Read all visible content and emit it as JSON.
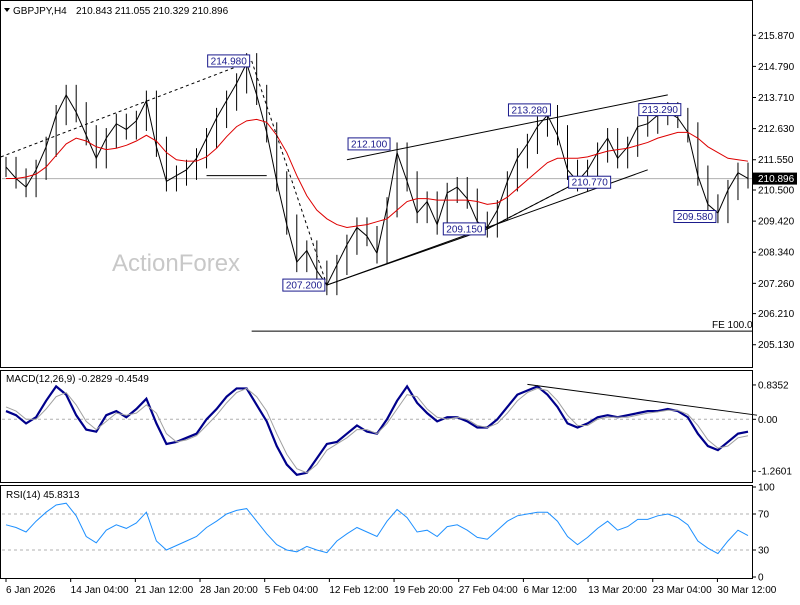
{
  "chart_data": {
    "type": "line",
    "symbol": "GBPJPY,H4",
    "ohlc": "210.843 211.055 210.329 210.896",
    "last_price": "210.896",
    "watermark": "ActionForex",
    "x_labels": [
      "6 Jan 2026",
      "14 Jan 04:00",
      "21 Jan 12:00",
      "28 Jan 20:00",
      "5 Feb 04:00",
      "12 Feb 12:00",
      "19 Feb 20:00",
      "27 Feb 04:00",
      "6 Mar 12:00",
      "13 Mar 20:00",
      "23 Mar 04:00",
      "30 Mar 12:00"
    ],
    "panels": [
      {
        "name": "price",
        "ylim": [
          204.6,
          216.4
        ],
        "y_ticks": [
          "215.870",
          "214.790",
          "213.710",
          "212.630",
          "211.550",
          "210.500",
          "209.420",
          "208.340",
          "207.260",
          "206.210",
          "205.130"
        ],
        "series": [
          {
            "name": "",
            "color": "#000000",
            "y": [
              211.3,
              210.9,
              210.6,
              211.2,
              212.0,
              213.1,
              213.8,
              213.2,
              212.4,
              211.6,
              212.3,
              212.8,
              212.6,
              212.9,
              213.6,
              212.0,
              210.8,
              211.0,
              211.2,
              211.6,
              212.3,
              213.0,
              213.6,
              214.2,
              214.9,
              213.8,
              212.5,
              210.8,
              209.3,
              208.0,
              208.4,
              207.7,
              207.2,
              207.9,
              208.6,
              209.2,
              208.9,
              208.3,
              209.9,
              211.8,
              210.8,
              209.7,
              210.1,
              209.3,
              210.4,
              210.6,
              210.2,
              209.4,
              209.2,
              209.8,
              210.8,
              211.6,
              212.1,
              212.7,
              213.1,
              212.4,
              211.2,
              210.8,
              211.2,
              211.8,
              212.3,
              211.6,
              212.0,
              212.7,
              212.8,
              213.1,
              213.2,
              213.0,
              212.5,
              211.0,
              210.0,
              209.7,
              210.5,
              211.1,
              210.9
            ]
          },
          {
            "name": "",
            "color": "#dd0000",
            "y": [
              210.9,
              210.9,
              210.95,
              211.05,
              211.3,
              211.7,
              212.1,
              212.3,
              212.2,
              212.0,
              211.9,
              211.95,
              212.05,
              212.2,
              212.4,
              212.2,
              211.8,
              211.55,
              211.5,
              211.5,
              211.65,
              211.95,
              212.35,
              212.7,
              212.9,
              212.95,
              212.85,
              212.4,
              211.8,
              211.0,
              210.3,
              209.8,
              209.5,
              209.3,
              209.2,
              209.25,
              209.3,
              209.4,
              209.5,
              209.8,
              210.1,
              210.2,
              210.2,
              210.15,
              210.15,
              210.15,
              210.15,
              210.1,
              210.0,
              210.05,
              210.25,
              210.55,
              210.85,
              211.15,
              211.45,
              211.6,
              211.6,
              211.6,
              211.65,
              211.75,
              211.85,
              211.9,
              211.95,
              212.05,
              212.15,
              212.3,
              212.4,
              212.5,
              212.5,
              212.3,
              212.0,
              211.8,
              211.6,
              211.55,
              211.5
            ]
          }
        ],
        "trendlines": [
          {
            "from": [
              -0.5,
              211.65
            ],
            "to": [
              24.5,
              214.98
            ],
            "style": "dashed"
          },
          {
            "from": [
              24.5,
              214.98
            ],
            "to": [
              32,
              207.2
            ],
            "style": "dashed"
          },
          {
            "from": [
              20,
              211.0
            ],
            "to": [
              26,
              211.0
            ],
            "style": "solid"
          },
          {
            "from": [
              32,
              207.2
            ],
            "to": [
              48,
              209.15
            ],
            "style": "solid"
          },
          {
            "from": [
              48,
              209.15
            ],
            "to": [
              57,
              210.77
            ],
            "style": "dashed"
          },
          {
            "from": [
              34,
              211.55
            ],
            "to": [
              66,
              213.8
            ],
            "style": "solid"
          },
          {
            "from": [
              32,
              207.2
            ],
            "to": [
              64,
              211.2
            ],
            "style": "solid"
          },
          {
            "from": [
              48,
              209.15
            ],
            "to": [
              57,
              210.77
            ],
            "style": "solid"
          }
        ],
        "annotations": [
          {
            "text": "214.980",
            "x": 24.5,
            "y": 214.98,
            "side": "left"
          },
          {
            "text": "212.100",
            "x": 38.5,
            "y": 212.1,
            "side": "left"
          },
          {
            "text": "213.280",
            "x": 54.5,
            "y": 213.28,
            "side": "left"
          },
          {
            "text": "213.290",
            "x": 67.5,
            "y": 213.29,
            "side": "left"
          },
          {
            "text": "207.200",
            "x": 32,
            "y": 207.2,
            "side": "left"
          },
          {
            "text": "209.150",
            "x": 48,
            "y": 209.15,
            "side": "left"
          },
          {
            "text": "210.770",
            "x": 60.5,
            "y": 210.77,
            "side": "left"
          },
          {
            "text": "209.580",
            "x": 71,
            "y": 209.58,
            "side": "left"
          }
        ],
        "fe_line": {
          "text": "FE 100.0",
          "y": 205.6,
          "from_x": 24.5
        }
      },
      {
        "name": "macd",
        "title": "MACD(12,26,9) -0.2829 -0.4549",
        "ylim": [
          -1.5,
          1.15
        ],
        "y_ticks": [
          "0.8352",
          "0.00",
          "-1.2601"
        ],
        "series": [
          {
            "name": "",
            "color": "#00008b",
            "y": [
              0.2,
              0.1,
              -0.1,
              0.05,
              0.45,
              0.8,
              0.6,
              0.1,
              -0.25,
              -0.3,
              0.1,
              0.2,
              0.05,
              0.25,
              0.5,
              -0.1,
              -0.6,
              -0.55,
              -0.45,
              -0.35,
              0.0,
              0.25,
              0.55,
              0.75,
              0.75,
              0.35,
              -0.05,
              -0.65,
              -1.1,
              -1.35,
              -1.3,
              -0.95,
              -0.6,
              -0.55,
              -0.35,
              -0.15,
              -0.3,
              -0.35,
              0.0,
              0.45,
              0.8,
              0.4,
              0.15,
              -0.05,
              0.05,
              0.05,
              -0.05,
              -0.2,
              -0.2,
              0.0,
              0.3,
              0.6,
              0.7,
              0.8,
              0.6,
              0.3,
              -0.1,
              -0.2,
              -0.1,
              0.05,
              0.1,
              0.05,
              0.1,
              0.15,
              0.2,
              0.2,
              0.25,
              0.2,
              0.05,
              -0.35,
              -0.65,
              -0.75,
              -0.55,
              -0.35,
              -0.3
            ]
          },
          {
            "name": "",
            "color": "#a0a0a0",
            "y": [
              0.3,
              0.2,
              0.0,
              0.0,
              0.25,
              0.55,
              0.65,
              0.35,
              -0.05,
              -0.25,
              -0.05,
              0.15,
              0.1,
              0.15,
              0.35,
              0.15,
              -0.35,
              -0.55,
              -0.5,
              -0.4,
              -0.15,
              0.1,
              0.4,
              0.65,
              0.75,
              0.55,
              0.2,
              -0.35,
              -0.85,
              -1.2,
              -1.3,
              -1.1,
              -0.75,
              -0.6,
              -0.45,
              -0.25,
              -0.25,
              -0.35,
              -0.1,
              0.25,
              0.6,
              0.55,
              0.25,
              0.05,
              0.0,
              0.05,
              0.0,
              -0.15,
              -0.2,
              -0.1,
              0.15,
              0.45,
              0.65,
              0.75,
              0.7,
              0.45,
              0.1,
              -0.15,
              -0.15,
              0.0,
              0.05,
              0.05,
              0.05,
              0.1,
              0.15,
              0.18,
              0.22,
              0.22,
              0.12,
              -0.15,
              -0.5,
              -0.7,
              -0.65,
              -0.45,
              -0.4
            ]
          }
        ],
        "trendlines": [
          {
            "from": [
              52,
              0.85
            ],
            "to": [
              74.9,
              0.1
            ],
            "style": "solid"
          }
        ]
      },
      {
        "name": "rsi",
        "title": "RSI(14) 45.8313",
        "ylim": [
          0,
          100
        ],
        "y_ticks": [
          "100",
          "70",
          "30",
          "0"
        ],
        "levels": [
          70,
          30
        ],
        "series": [
          {
            "name": "",
            "color": "#1e90ff",
            "y": [
              58,
              55,
              50,
              62,
              72,
              80,
              82,
              68,
              45,
              38,
              52,
              58,
              54,
              60,
              72,
              40,
              30,
              35,
              40,
              45,
              55,
              62,
              70,
              74,
              76,
              62,
              48,
              36,
              30,
              28,
              34,
              30,
              27,
              40,
              48,
              55,
              50,
              45,
              62,
              75,
              66,
              50,
              52,
              45,
              56,
              58,
              52,
              44,
              42,
              52,
              62,
              68,
              70,
              72,
              72,
              62,
              45,
              36,
              44,
              54,
              62,
              52,
              56,
              64,
              64,
              68,
              70,
              66,
              58,
              40,
              32,
              26,
              40,
              52,
              46
            ]
          }
        ]
      }
    ]
  }
}
